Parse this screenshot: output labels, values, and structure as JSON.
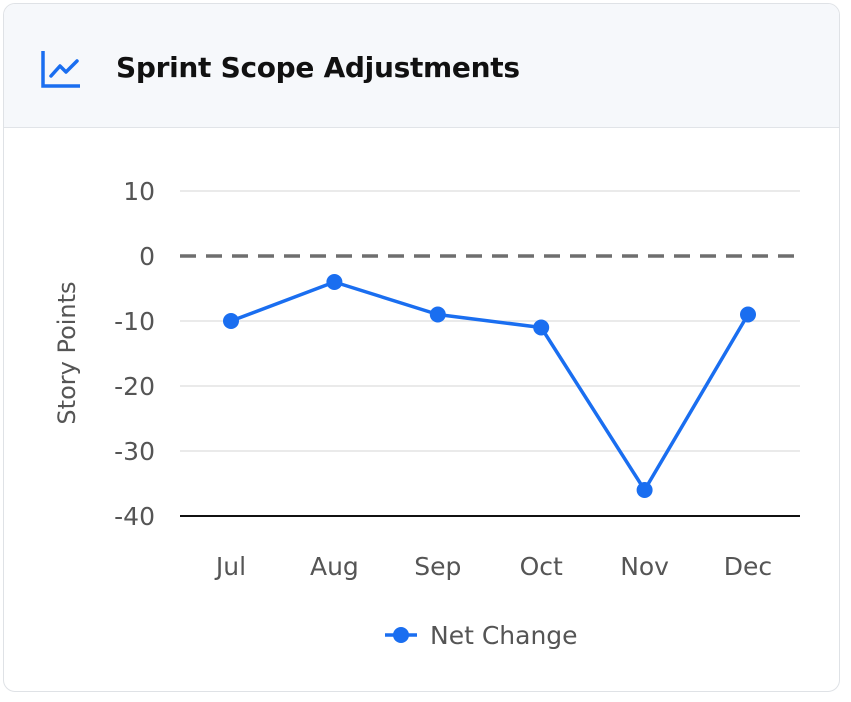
{
  "header": {
    "title": "Sprint Scope Adjustments",
    "icon": "line-chart-icon"
  },
  "colors": {
    "accent": "#1a6ef0",
    "grid": "#e3e3e3",
    "zero_line": "#6e6e6e",
    "axis": "#111111",
    "tick_text": "#555555"
  },
  "chart_data": {
    "type": "line",
    "title": "",
    "xlabel": "",
    "ylabel": "Story Points",
    "categories": [
      "Jul",
      "Aug",
      "Sep",
      "Oct",
      "Nov",
      "Dec"
    ],
    "series": [
      {
        "name": "Net Change",
        "values": [
          -10,
          -4,
          -9,
          -11,
          -36,
          -9
        ]
      }
    ],
    "ylim": [
      -40,
      10
    ],
    "yticks": [
      10,
      0,
      -10,
      -20,
      -30,
      -40
    ],
    "reference_line": {
      "y": 0,
      "style": "dashed"
    },
    "grid": true,
    "legend": "bottom-center"
  }
}
